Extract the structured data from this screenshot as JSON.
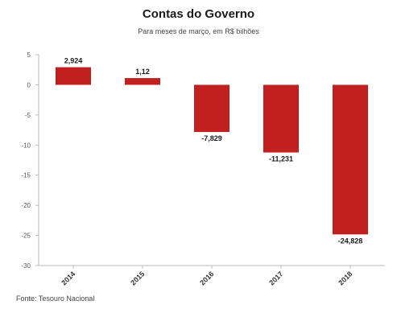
{
  "header": {
    "title": "Contas do Governo",
    "subtitle": "Para meses de março, em R$ bilhões"
  },
  "footer": {
    "source": "Fonte: Tesouro Nacional"
  },
  "colors": {
    "bar": "#c1201f",
    "axis": "#bbbbbb",
    "grid": "#d6d6d6"
  },
  "chart_data": {
    "type": "bar",
    "title": "Contas do Governo",
    "subtitle": "Para meses de março, em R$ bilhões",
    "categories": [
      "2014",
      "2015",
      "2016",
      "2017",
      "2018"
    ],
    "values": [
      2.924,
      1.12,
      -7.829,
      -11.231,
      -24.828
    ],
    "data_labels": [
      "2,924",
      "1,12",
      "-7,829",
      "-11,231",
      "-24,828"
    ],
    "ylim": [
      -30,
      5
    ],
    "yticks": [
      5,
      0,
      -5,
      -10,
      -15,
      -20,
      -25,
      -30
    ],
    "grid": false,
    "legend": "none",
    "xlabel": "",
    "ylabel": ""
  }
}
